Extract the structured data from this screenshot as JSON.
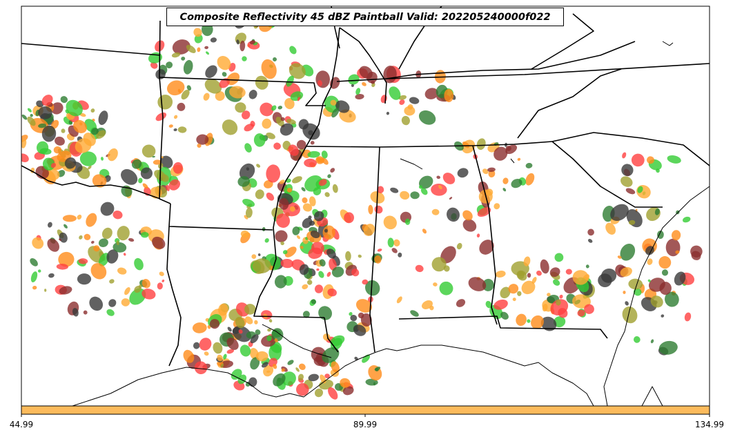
{
  "title": "Composite Reflectivity 45 dBZ Paintball Valid: 202205240000f022",
  "colorbar": {
    "color": "#fdbb5c",
    "tick_labels": [
      "44.99",
      "89.99",
      "134.99"
    ]
  },
  "map": {
    "region": "Southeastern United States",
    "background_color": "#ffffff",
    "boundary_color": "#000000",
    "member_colors": [
      "#ff4040",
      "#8b2e2e",
      "#a0a030",
      "#ff8c1a",
      "#2e7d32",
      "#3a3a3a",
      "#33cc33",
      "#ffaa33"
    ]
  }
}
